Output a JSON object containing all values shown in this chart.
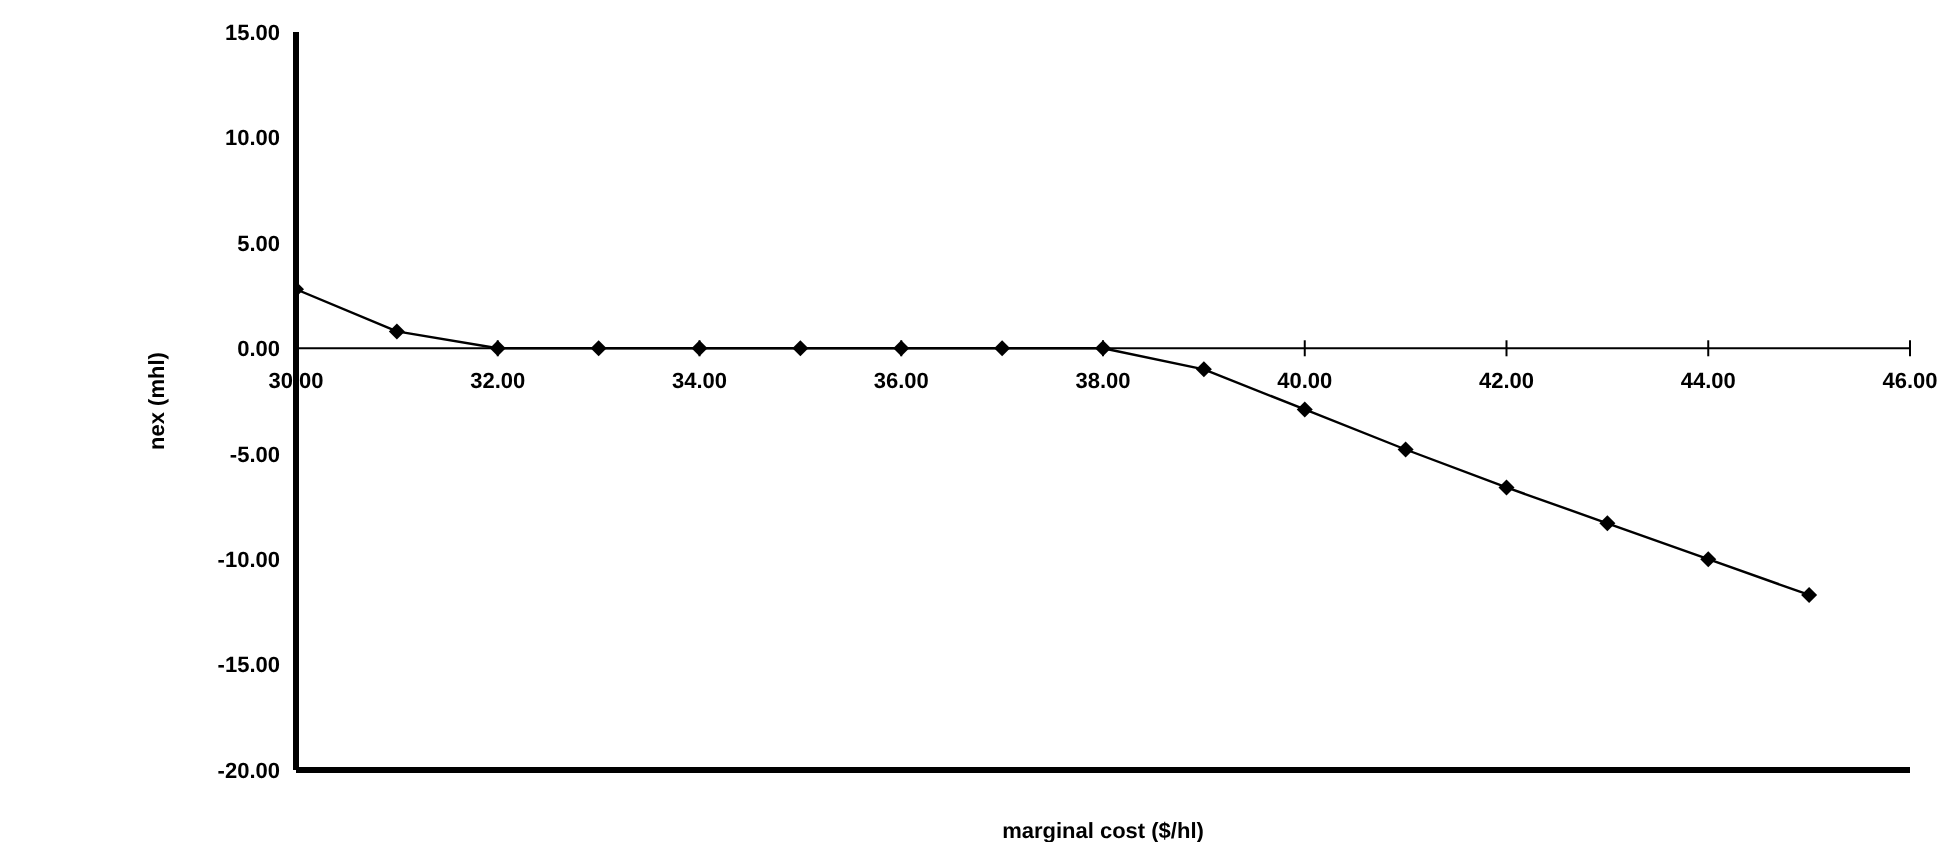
{
  "chart_data": {
    "type": "line",
    "xlabel": "marginal cost ($/hl)",
    "ylabel": "nex (mhl)",
    "x": [
      30,
      31,
      32,
      33,
      34,
      35,
      36,
      37,
      38,
      39,
      40,
      41,
      42,
      43,
      44,
      45
    ],
    "series": [
      {
        "color": "#000000",
        "values": [
          2.8,
          0.8,
          0,
          0,
          0,
          0,
          0,
          0,
          0,
          -1.0,
          -2.9,
          -4.8,
          -6.6,
          -8.3,
          -10.0,
          -11.7
        ]
      }
    ],
    "xlim": [
      30,
      46
    ],
    "xticks": [
      {
        "value": 30,
        "label": "30.00"
      },
      {
        "value": 32,
        "label": "32.00"
      },
      {
        "value": 34,
        "label": "34.00"
      },
      {
        "value": 36,
        "label": "36.00"
      },
      {
        "value": 38,
        "label": "38.00"
      },
      {
        "value": 40,
        "label": "40.00"
      },
      {
        "value": 42,
        "label": "42.00"
      },
      {
        "value": 44,
        "label": "44.00"
      },
      {
        "value": 46,
        "label": "46.00"
      }
    ],
    "ylim": [
      -20,
      15
    ],
    "yticks": [
      {
        "value": -20,
        "label": "-20.00"
      },
      {
        "value": -15,
        "label": "-15.00"
      },
      {
        "value": -10,
        "label": "-10.00"
      },
      {
        "value": -5,
        "label": "-5.00"
      },
      {
        "value": 0,
        "label": "0.00"
      },
      {
        "value": 5,
        "label": "5.00"
      },
      {
        "value": 10,
        "label": "10.00"
      },
      {
        "value": 15,
        "label": "15.00"
      }
    ],
    "grid": false,
    "legend": false,
    "marker": "diamond",
    "line_style": "solid"
  }
}
